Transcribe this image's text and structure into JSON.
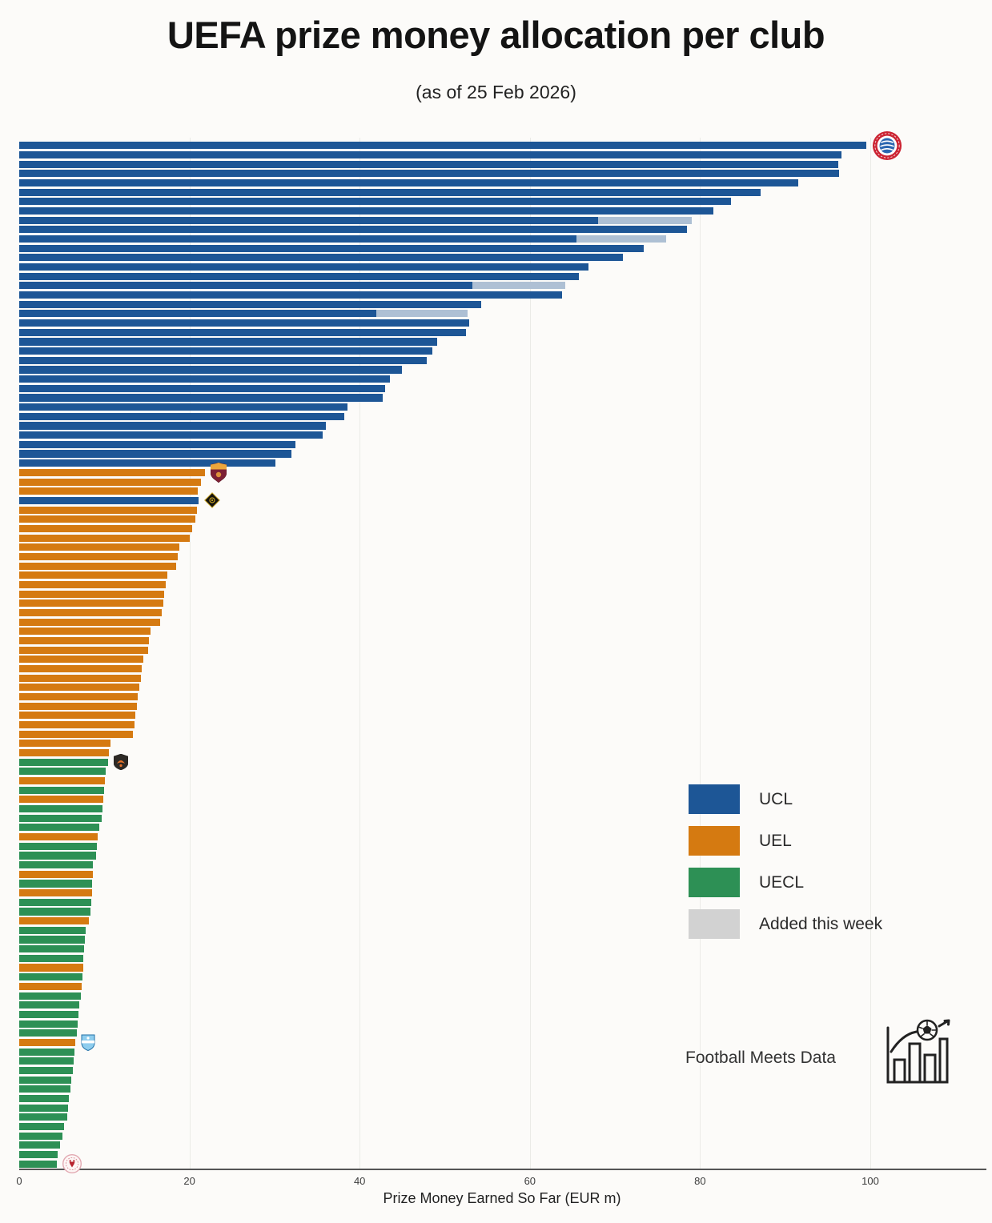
{
  "title": "UEFA prize money allocation per club",
  "subtitle": "(as of 25 Feb 2026)",
  "axis": {
    "label": "Prize Money Earned So Far (EUR m)",
    "ticks": [
      0,
      20,
      40,
      60,
      80,
      100
    ]
  },
  "legend": {
    "items": [
      {
        "key": "ucl",
        "label": "UCL"
      },
      {
        "key": "uel",
        "label": "UEL"
      },
      {
        "key": "uecl",
        "label": "UECL"
      },
      {
        "key": "added_legend",
        "label": "Added this week"
      }
    ]
  },
  "footer": {
    "brand": "Football Meets Data"
  },
  "colors": {
    "ucl": "#1d5696",
    "uel": "#d57a11",
    "uecl": "#2d9055",
    "added_bar": "#aec0d4",
    "added_legend": "#d2d2d2"
  },
  "chart_data": {
    "type": "bar",
    "orientation": "horizontal",
    "title": "UEFA prize money allocation per club",
    "subtitle": "(as of 25 Feb 2026)",
    "xlabel": "Prize Money Earned So Far (EUR m)",
    "xlim": [
      0,
      113
    ],
    "grid": "vertical-light",
    "legend_position": "right-middle",
    "value_unit": "EUR m",
    "note": "Bars sorted by prize money; gray segment = amount added this week; club crests mark competition leaders/notable clubs.",
    "rows": [
      {
        "competition": "UCL",
        "value": 99.5,
        "logo": "bayern-munich"
      },
      {
        "competition": "UCL",
        "value": 96.6
      },
      {
        "competition": "UCL",
        "value": 96.2
      },
      {
        "competition": "UCL",
        "value": 96.3
      },
      {
        "competition": "UCL",
        "value": 91.5
      },
      {
        "competition": "UCL",
        "value": 87.1
      },
      {
        "competition": "UCL",
        "value": 83.6
      },
      {
        "competition": "UCL",
        "value": 81.6
      },
      {
        "competition": "UCL",
        "value": 68.0,
        "added": 11.0
      },
      {
        "competition": "UCL",
        "value": 78.5
      },
      {
        "competition": "UCL",
        "value": 65.5,
        "added": 10.5
      },
      {
        "competition": "UCL",
        "value": 73.4
      },
      {
        "competition": "UCL",
        "value": 70.9
      },
      {
        "competition": "UCL",
        "value": 66.9
      },
      {
        "competition": "UCL",
        "value": 65.8
      },
      {
        "competition": "UCL",
        "value": 53.2,
        "added": 11.0
      },
      {
        "competition": "UCL",
        "value": 63.8
      },
      {
        "competition": "UCL",
        "value": 54.3
      },
      {
        "competition": "UCL",
        "value": 42.0,
        "added": 10.7
      },
      {
        "competition": "UCL",
        "value": 52.9
      },
      {
        "competition": "UCL",
        "value": 52.5
      },
      {
        "competition": "UCL",
        "value": 49.1
      },
      {
        "competition": "UCL",
        "value": 48.5
      },
      {
        "competition": "UCL",
        "value": 47.9
      },
      {
        "competition": "UCL",
        "value": 45.0
      },
      {
        "competition": "UCL",
        "value": 43.6
      },
      {
        "competition": "UCL",
        "value": 43.0
      },
      {
        "competition": "UCL",
        "value": 42.7
      },
      {
        "competition": "UCL",
        "value": 38.6
      },
      {
        "competition": "UCL",
        "value": 38.2
      },
      {
        "competition": "UCL",
        "value": 36.0
      },
      {
        "competition": "UCL",
        "value": 35.7
      },
      {
        "competition": "UCL",
        "value": 32.5
      },
      {
        "competition": "UCL",
        "value": 32.0
      },
      {
        "competition": "UCL",
        "value": 30.1
      },
      {
        "competition": "UEL",
        "value": 21.8,
        "logo": "as-roma"
      },
      {
        "competition": "UEL",
        "value": 21.4
      },
      {
        "competition": "UEL",
        "value": 21.0
      },
      {
        "competition": "UCL",
        "value": 21.1,
        "logo": "black-yellow-diamond"
      },
      {
        "competition": "UEL",
        "value": 20.9
      },
      {
        "competition": "UEL",
        "value": 20.7
      },
      {
        "competition": "UEL",
        "value": 20.3
      },
      {
        "competition": "UEL",
        "value": 20.0
      },
      {
        "competition": "UEL",
        "value": 18.8
      },
      {
        "competition": "UEL",
        "value": 18.6
      },
      {
        "competition": "UEL",
        "value": 18.4
      },
      {
        "competition": "UEL",
        "value": 17.4
      },
      {
        "competition": "UEL",
        "value": 17.2
      },
      {
        "competition": "UEL",
        "value": 17.0
      },
      {
        "competition": "UEL",
        "value": 16.9
      },
      {
        "competition": "UEL",
        "value": 16.7
      },
      {
        "competition": "UEL",
        "value": 16.6
      },
      {
        "competition": "UEL",
        "value": 15.4
      },
      {
        "competition": "UEL",
        "value": 15.2
      },
      {
        "competition": "UEL",
        "value": 15.1
      },
      {
        "competition": "UEL",
        "value": 14.6
      },
      {
        "competition": "UEL",
        "value": 14.4
      },
      {
        "competition": "UEL",
        "value": 14.3
      },
      {
        "competition": "UEL",
        "value": 14.1
      },
      {
        "competition": "UEL",
        "value": 13.9
      },
      {
        "competition": "UEL",
        "value": 13.8
      },
      {
        "competition": "UEL",
        "value": 13.6
      },
      {
        "competition": "UEL",
        "value": 13.5
      },
      {
        "competition": "UEL",
        "value": 13.4
      },
      {
        "competition": "UEL",
        "value": 10.7
      },
      {
        "competition": "UEL",
        "value": 10.5
      },
      {
        "competition": "UECL",
        "value": 10.4,
        "logo": "shakhtar-donetsk"
      },
      {
        "competition": "UECL",
        "value": 10.2
      },
      {
        "competition": "UEL",
        "value": 10.1
      },
      {
        "competition": "UECL",
        "value": 10.0
      },
      {
        "competition": "UEL",
        "value": 9.9
      },
      {
        "competition": "UECL",
        "value": 9.8
      },
      {
        "competition": "UECL",
        "value": 9.7
      },
      {
        "competition": "UECL",
        "value": 9.4
      },
      {
        "competition": "UEL",
        "value": 9.2
      },
      {
        "competition": "UECL",
        "value": 9.1
      },
      {
        "competition": "UECL",
        "value": 9.0
      },
      {
        "competition": "UECL",
        "value": 8.7
      },
      {
        "competition": "UEL",
        "value": 8.7
      },
      {
        "competition": "UECL",
        "value": 8.6
      },
      {
        "competition": "UEL",
        "value": 8.6
      },
      {
        "competition": "UECL",
        "value": 8.5
      },
      {
        "competition": "UECL",
        "value": 8.4
      },
      {
        "competition": "UEL",
        "value": 8.2
      },
      {
        "competition": "UECL",
        "value": 7.8
      },
      {
        "competition": "UECL",
        "value": 7.7
      },
      {
        "competition": "UECL",
        "value": 7.6
      },
      {
        "competition": "UECL",
        "value": 7.5
      },
      {
        "competition": "UEL",
        "value": 7.5
      },
      {
        "competition": "UECL",
        "value": 7.4
      },
      {
        "competition": "UEL",
        "value": 7.3
      },
      {
        "competition": "UECL",
        "value": 7.2
      },
      {
        "competition": "UECL",
        "value": 7.1
      },
      {
        "competition": "UECL",
        "value": 7.0
      },
      {
        "competition": "UECL",
        "value": 6.9
      },
      {
        "competition": "UECL",
        "value": 6.8
      },
      {
        "competition": "UEL",
        "value": 6.6,
        "logo": "malmo-ff"
      },
      {
        "competition": "UECL",
        "value": 6.5
      },
      {
        "competition": "UECL",
        "value": 6.4
      },
      {
        "competition": "UECL",
        "value": 6.3
      },
      {
        "competition": "UECL",
        "value": 6.1
      },
      {
        "competition": "UECL",
        "value": 6.0
      },
      {
        "competition": "UECL",
        "value": 5.8
      },
      {
        "competition": "UECL",
        "value": 5.7
      },
      {
        "competition": "UECL",
        "value": 5.6
      },
      {
        "competition": "UECL",
        "value": 5.3
      },
      {
        "competition": "UECL",
        "value": 5.1
      },
      {
        "competition": "UECL",
        "value": 4.8
      },
      {
        "competition": "UECL",
        "value": 4.5
      },
      {
        "competition": "UECL",
        "value": 4.4,
        "logo": "red-white-crest"
      }
    ]
  }
}
